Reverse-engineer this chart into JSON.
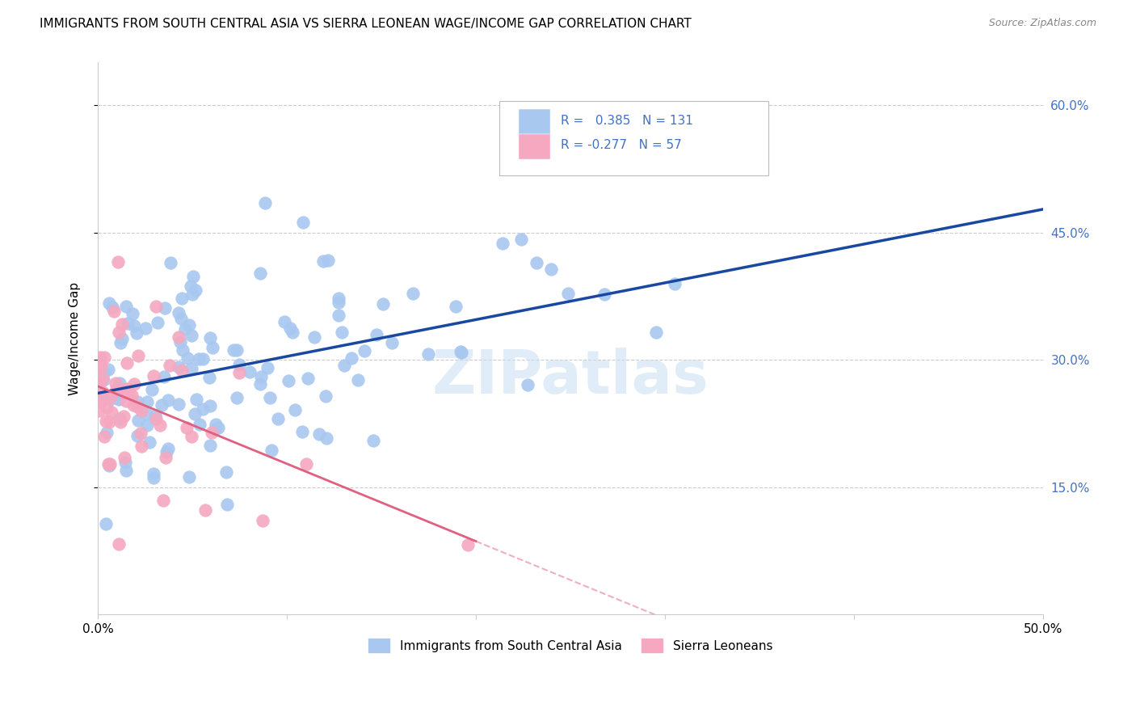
{
  "title": "IMMIGRANTS FROM SOUTH CENTRAL ASIA VS SIERRA LEONEAN WAGE/INCOME GAP CORRELATION CHART",
  "source": "Source: ZipAtlas.com",
  "ylabel": "Wage/Income Gap",
  "yticks": [
    0.15,
    0.3,
    0.45,
    0.6
  ],
  "ytick_labels": [
    "15.0%",
    "30.0%",
    "45.0%",
    "60.0%"
  ],
  "xlim": [
    0.0,
    0.5
  ],
  "ylim": [
    0.0,
    0.65
  ],
  "R_blue": 0.385,
  "N_blue": 131,
  "R_pink": -0.277,
  "N_pink": 57,
  "blue_color": "#a8c8f0",
  "pink_color": "#f5a8c0",
  "blue_line_color": "#1848a0",
  "pink_line_color": "#e06080",
  "watermark": "ZIPatlas",
  "watermark_color": "#c8dff5",
  "legend_label_blue": "Immigrants from South Central Asia",
  "legend_label_pink": "Sierra Leoneans",
  "title_fontsize": 11,
  "source_fontsize": 9,
  "axis_label_color": "#4472c4",
  "grid_color": "#cccccc"
}
